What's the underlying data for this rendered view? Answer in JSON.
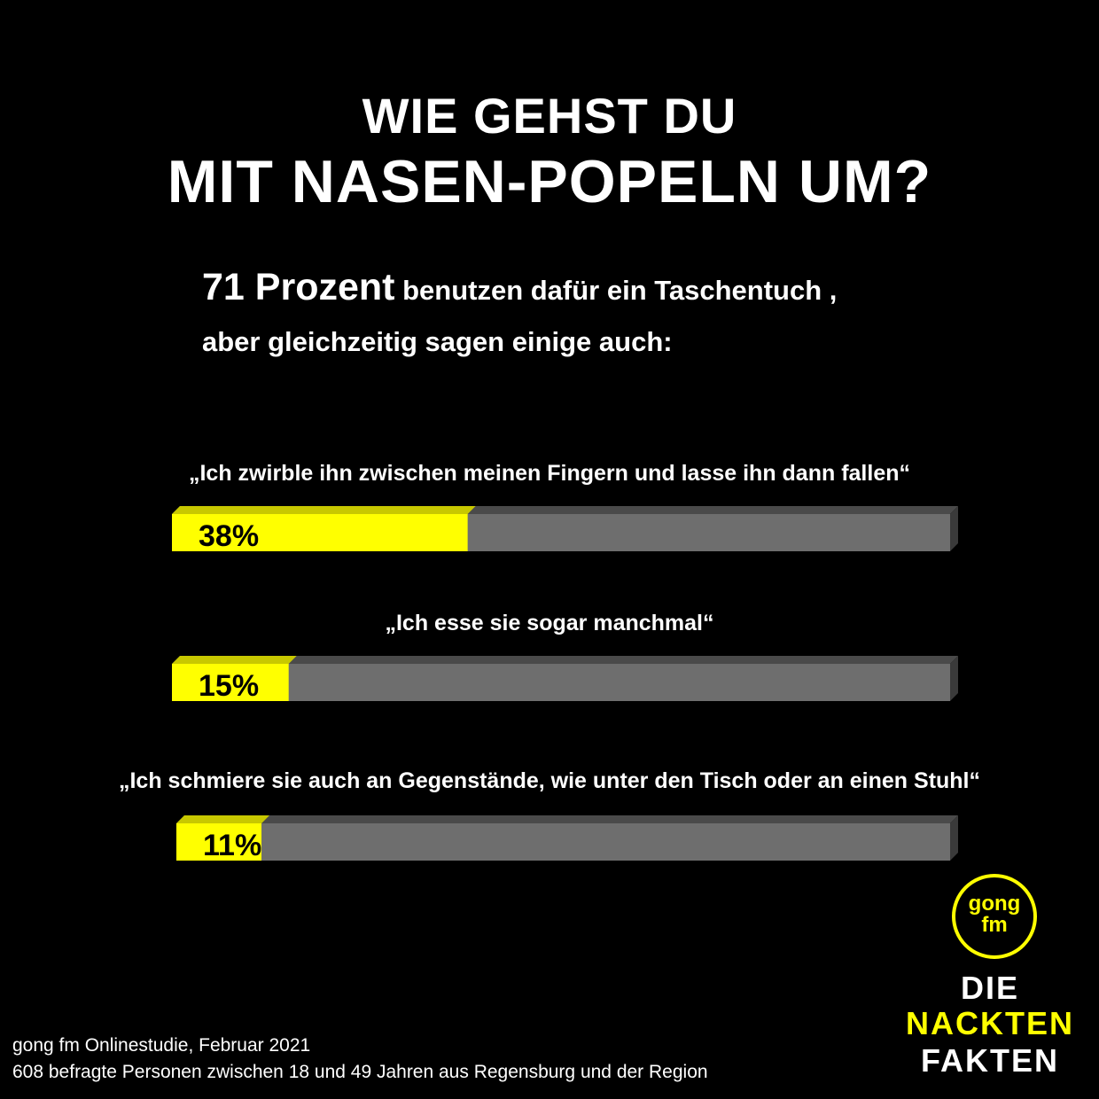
{
  "title": {
    "line1": "WIE GEHST DU",
    "line2": "MIT NASEN-POPELN UM?"
  },
  "intro": {
    "highlight": "71 Prozent",
    "rest": " benutzen dafür ein Taschentuch ,",
    "line2": "aber gleichzeitig sagen einige auch:"
  },
  "chart_data": {
    "type": "bar",
    "orientation": "horizontal",
    "categories": [
      "„Ich zwirble ihn zwischen meinen Fingern und lasse ihn dann fallen“",
      "„Ich esse sie sogar manchmal“",
      "„Ich schmiere sie auch an Gegenstände, wie unter den Tisch oder an einen Stuhl“"
    ],
    "values": [
      38,
      15,
      11
    ],
    "value_labels": [
      "38%",
      "15%",
      "11%"
    ],
    "xlim": [
      0,
      100
    ],
    "grid": false,
    "legend": "none",
    "colors": {
      "fill": "#ffff00",
      "fill_top": "#c8c800",
      "track": "#6e6e6e",
      "track_top": "#4a4a4a",
      "track_side": "#3a3a3a"
    }
  },
  "source": {
    "line1": "gong fm Onlinestudie, Februar 2021",
    "line2": "608 befragte Personen zwischen 18 und 49 Jahren aus Regensburg und der Region"
  },
  "logo": {
    "line1": "gong",
    "line2": "fm",
    "brand1": "DIE",
    "brand2": "NACKTEN",
    "brand3": "FAKTEN",
    "color": "#ffff00"
  }
}
